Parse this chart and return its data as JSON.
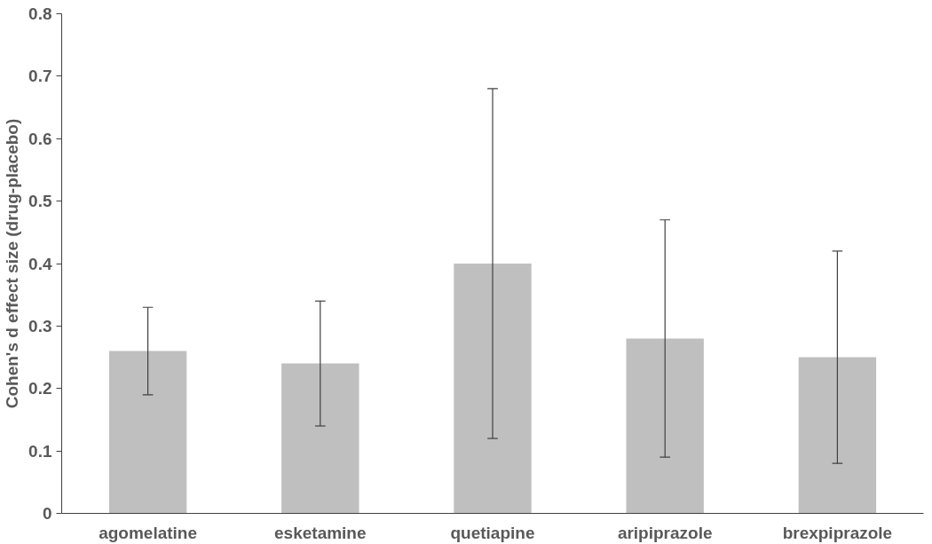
{
  "chart_data": {
    "type": "bar",
    "ylabel": "Cohen's d effect size (drug-placebo)",
    "categories": [
      "agomelatine",
      "esketamine",
      "quetiapine",
      "aripiprazole",
      "brexpiprazole"
    ],
    "values": [
      0.26,
      0.24,
      0.4,
      0.28,
      0.25
    ],
    "errors": [
      [
        0.19,
        0.33
      ],
      [
        0.14,
        0.34
      ],
      [
        0.12,
        0.68
      ],
      [
        0.09,
        0.47
      ],
      [
        0.08,
        0.42
      ]
    ],
    "color": "#bfbfbf",
    "ylim": [
      0,
      0.8
    ],
    "yticks": [
      0,
      0.1,
      0.2,
      0.3,
      0.4,
      0.5,
      0.6,
      0.7,
      0.8
    ],
    "grid": false
  }
}
